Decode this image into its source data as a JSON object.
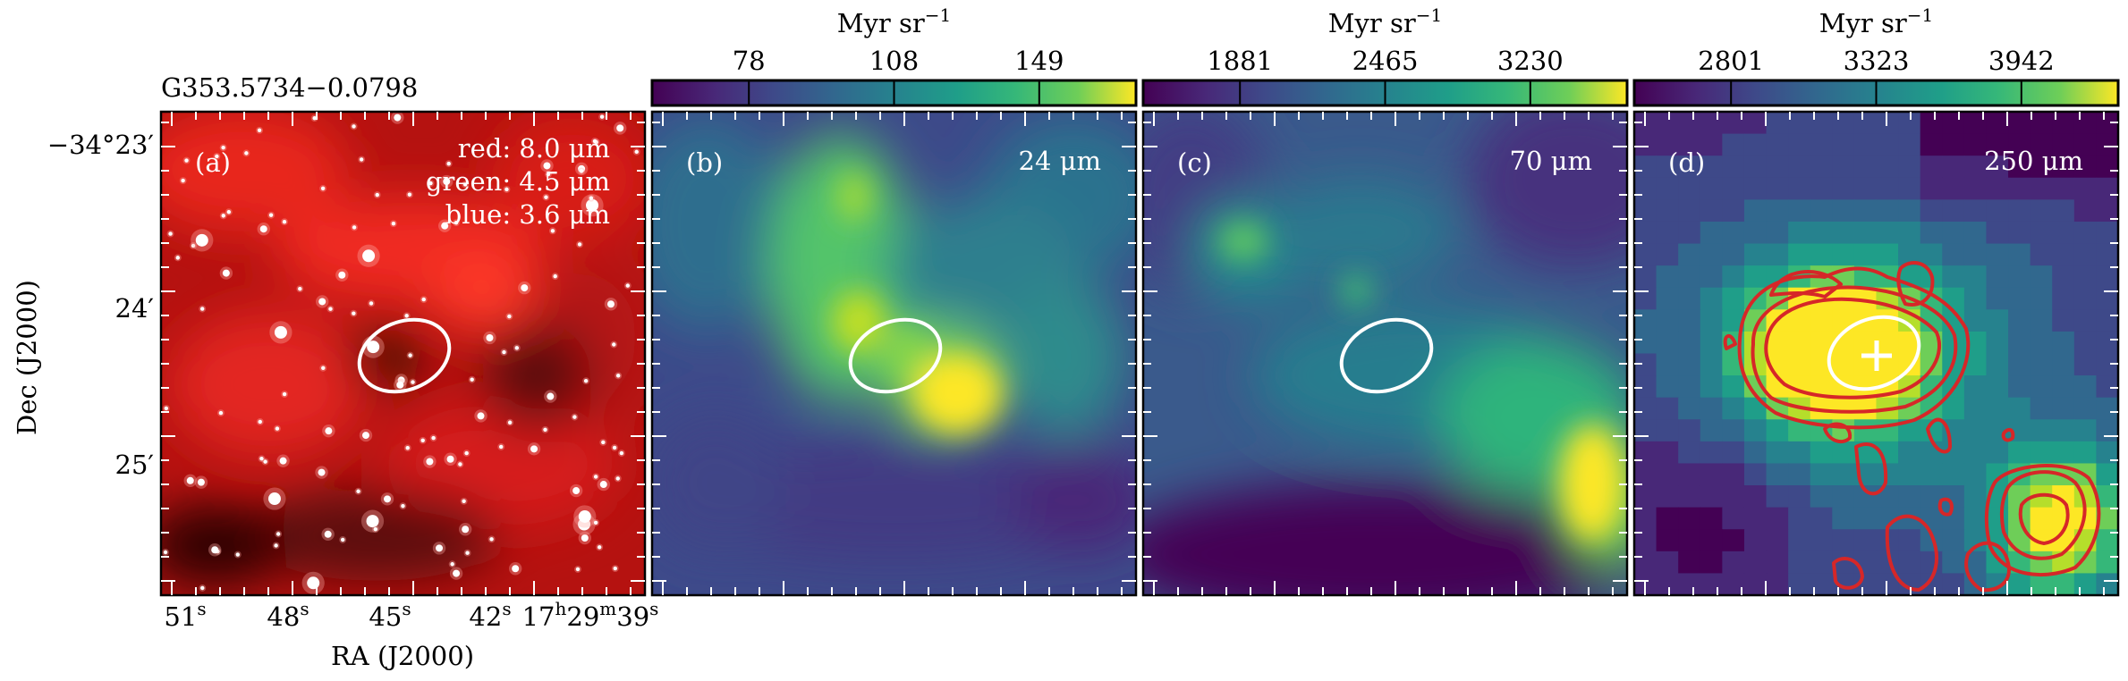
{
  "figure": {
    "source_title": "G353.5734−0.0798",
    "x_axis_title": "RA (J2000)",
    "y_axis_title": "Dec (J2000)"
  },
  "ra_ticks": [
    {
      "main": "51",
      "sup": "s"
    },
    {
      "main": "48",
      "sup": "s"
    },
    {
      "main": "45",
      "sup": "s"
    },
    {
      "main": "42",
      "sup": "s"
    },
    {
      "main": "17",
      "sup": "h",
      "main2": "29",
      "sup2": "m",
      "main3": "39",
      "sup3": "s"
    }
  ],
  "dec_ticks": [
    {
      "text": "−34°23′"
    },
    {
      "text": "24′"
    },
    {
      "text": "25′"
    }
  ],
  "panels": [
    {
      "id": "a",
      "label": "(a)",
      "bands": [
        "red: 8.0 μm",
        "green: 4.5 μm",
        "blue: 3.6 μm"
      ],
      "colormap": "rgb-composite"
    },
    {
      "id": "b",
      "label": "(b)",
      "bands": [
        "24 μm"
      ],
      "colormap": "viridis",
      "colorbar": {
        "title": "Myr sr",
        "title_sup": "−1",
        "ticks": [
          "78",
          "108",
          "149"
        ]
      }
    },
    {
      "id": "c",
      "label": "(c)",
      "bands": [
        "70 μm"
      ],
      "colormap": "viridis",
      "colorbar": {
        "title": "Myr sr",
        "title_sup": "−1",
        "ticks": [
          "1881",
          "2465",
          "3230"
        ]
      }
    },
    {
      "id": "d",
      "label": "(d)",
      "bands": [
        "250 μm"
      ],
      "colormap": "viridis",
      "contour_color": "#d62728",
      "marker": "plus",
      "colorbar": {
        "title": "Myr sr",
        "title_sup": "−1",
        "ticks": [
          "2801",
          "3323",
          "3942"
        ]
      }
    }
  ],
  "colors": {
    "viridis_low": "#440154",
    "viridis_mid": "#21908d",
    "viridis_high": "#fde725",
    "contour": "#d62728",
    "ellipse": "#ffffff"
  }
}
